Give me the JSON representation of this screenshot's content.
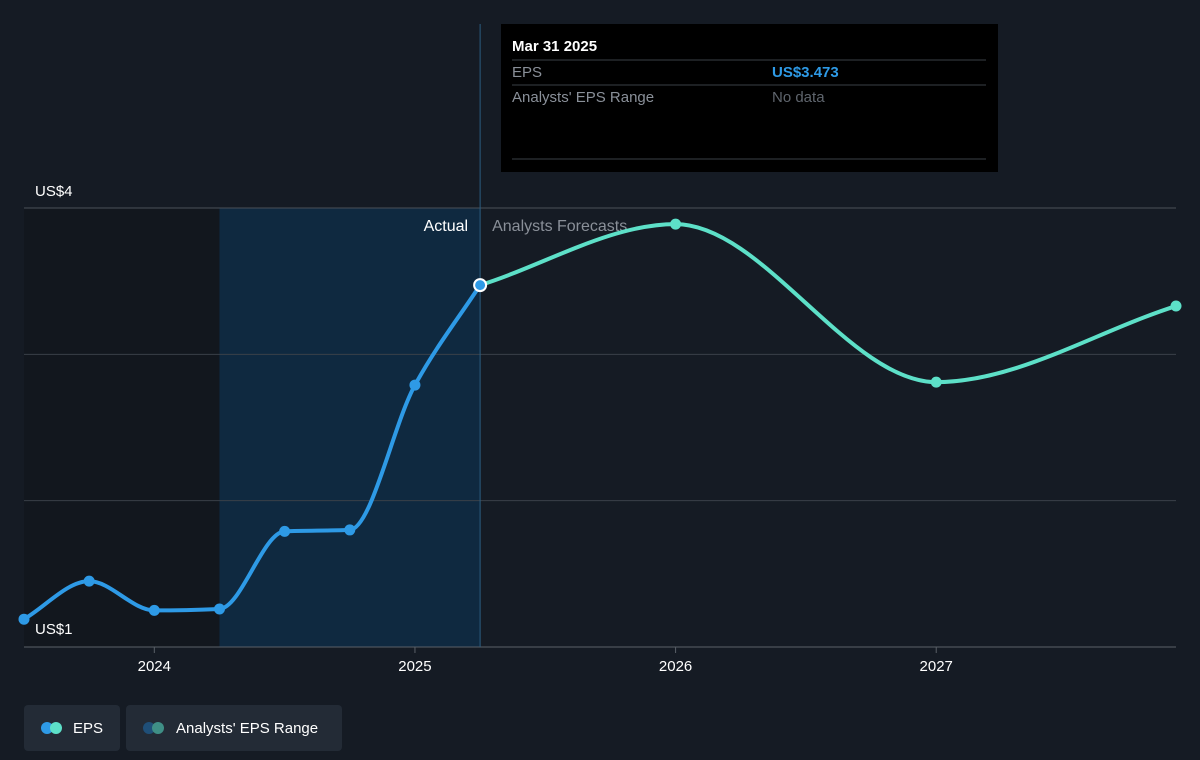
{
  "colors": {
    "background": "#151b24",
    "past_shade": "#12171e",
    "actual_band": "#0f2940",
    "grid": "#3a4048",
    "eps_actual": "#2e9ae6",
    "eps_forecast": "#5de0c8",
    "range_dot_a": "#1f4f78",
    "range_dot_b": "#3f8f86",
    "tooltip_bg": "#000000",
    "tooltip_eps_value": "#2e9ae6",
    "muted_text": "#8a9099"
  },
  "sections": {
    "actual_label": "Actual",
    "forecast_label": "Analysts Forecasts"
  },
  "tooltip": {
    "date": "Mar 31 2025",
    "rows": [
      {
        "label": "EPS",
        "value": "US$3.473"
      },
      {
        "label": "Analysts' EPS Range",
        "value": "No data"
      }
    ]
  },
  "legend": [
    {
      "label": "EPS",
      "icon": "eps-legend-dots"
    },
    {
      "label": "Analysts' EPS Range",
      "icon": "range-legend-dots"
    }
  ],
  "chart_data": {
    "type": "line",
    "y_tick_labels": [
      "US$4",
      "US$1"
    ],
    "ylim": [
      1,
      4
    ],
    "y_gridlines": [
      1,
      2,
      3,
      4
    ],
    "x_ticks": [
      2024,
      2025,
      2026,
      2027
    ],
    "x_range": [
      2023.5,
      2027.92
    ],
    "actual_band_start": 2024.25,
    "highlight_date": 2025.25,
    "series": [
      {
        "name": "EPS",
        "kind": "actual",
        "points": [
          {
            "x": 2023.5,
            "y": 1.19
          },
          {
            "x": 2023.75,
            "y": 1.45
          },
          {
            "x": 2024.0,
            "y": 1.25
          },
          {
            "x": 2024.25,
            "y": 1.26
          },
          {
            "x": 2024.5,
            "y": 1.79
          },
          {
            "x": 2024.75,
            "y": 1.8
          },
          {
            "x": 2025.0,
            "y": 2.79
          },
          {
            "x": 2025.25,
            "y": 3.473
          }
        ]
      },
      {
        "name": "EPS",
        "kind": "forecast",
        "points": [
          {
            "x": 2025.25,
            "y": 3.473
          },
          {
            "x": 2026.0,
            "y": 3.89
          },
          {
            "x": 2027.0,
            "y": 2.81
          },
          {
            "x": 2027.92,
            "y": 3.33
          }
        ]
      }
    ]
  }
}
